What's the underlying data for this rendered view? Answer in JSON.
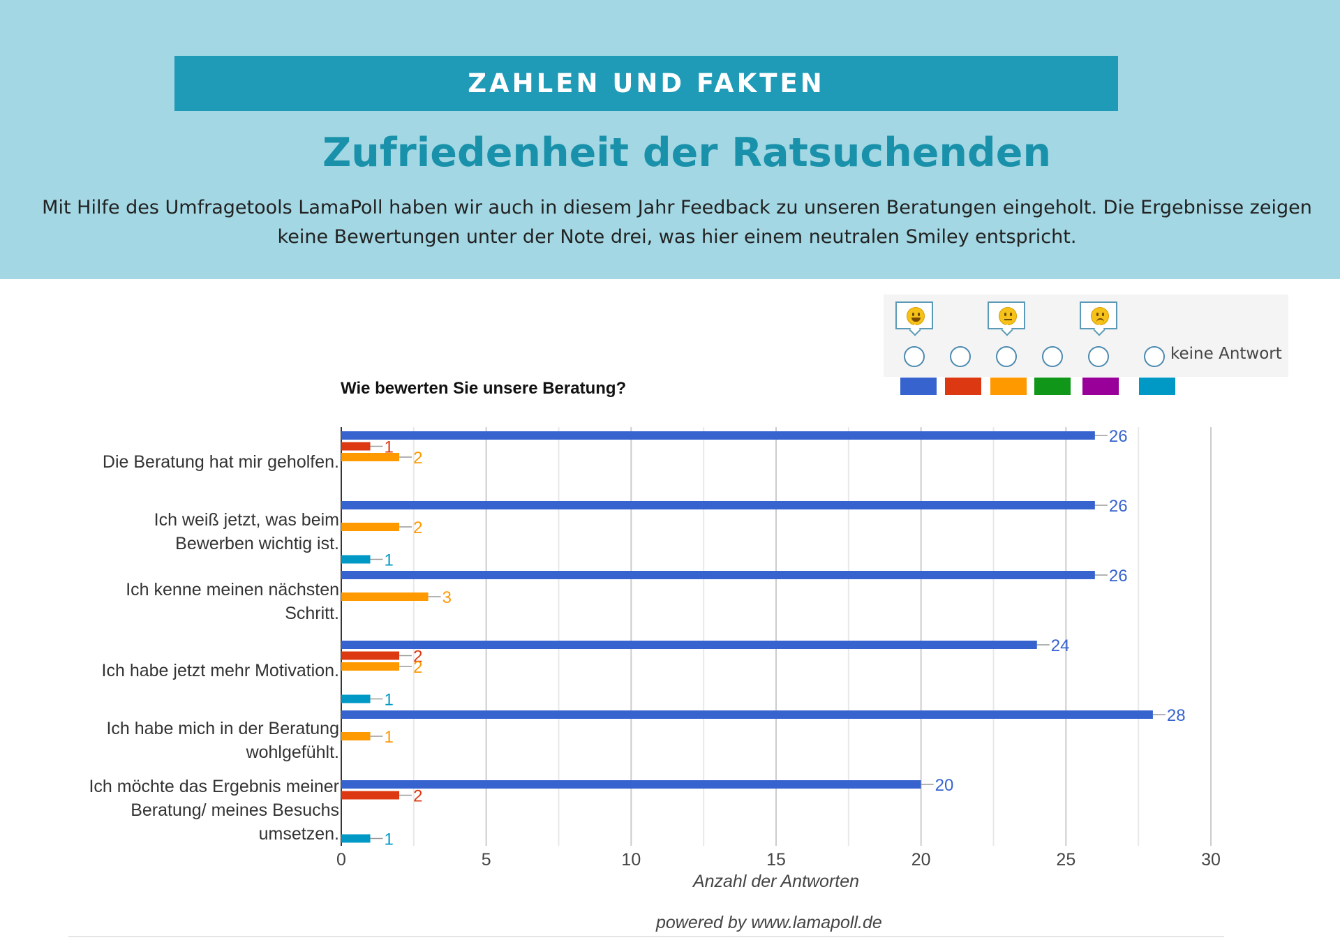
{
  "header": {
    "banner": "ZAHLEN UND FAKTEN",
    "title": "Zufriedenheit der Ratsuchenden",
    "intro": "Mit Hilfe des Umfragetools LamaPoll haben wir auch in diesem Jahr Feedback zu unseren Beratungen eingeholt. Die Ergebnisse zeigen keine Bewertungen unter der Note drei, was hier einem neutralen Smiley entspricht."
  },
  "legend": {
    "smileys": [
      "happy-smiley-icon",
      "neutral-smiley-icon",
      "sad-smiley-icon"
    ],
    "no_answer_label": "keine Antwort",
    "colors": [
      "#3763cf",
      "#dc3912",
      "#ff9900",
      "#109618",
      "#990099",
      "#0099c6"
    ]
  },
  "chart_data": {
    "type": "bar",
    "orientation": "horizontal",
    "title": "Wie bewerten Sie unsere Beratung?",
    "xlabel": "Anzahl der Antworten",
    "ylabel": "",
    "xlim": [
      0,
      30
    ],
    "xticks": [
      0,
      5,
      10,
      15,
      20,
      25,
      30
    ],
    "grid": true,
    "categories": [
      "Die Beratung hat mir geholfen.",
      "Ich weiß jetzt, was beim\nBewerben wichtig ist.",
      "Ich kenne meinen nächsten\nSchritt.",
      "Ich habe jetzt mehr Motivation.",
      "Ich habe mich in der Beratung\nwohlgefühlt.",
      "Ich möchte das Ergebnis meiner\nBeratung/ meines Besuchs\numsetzen."
    ],
    "series": [
      {
        "color": "#3763cf",
        "values": [
          26,
          26,
          26,
          24,
          28,
          20
        ]
      },
      {
        "color": "#dc3912",
        "values": [
          1,
          0,
          0,
          2,
          0,
          2
        ]
      },
      {
        "color": "#ff9900",
        "values": [
          2,
          2,
          3,
          2,
          1,
          0
        ]
      },
      {
        "color": "#109618",
        "values": [
          0,
          0,
          0,
          0,
          0,
          0
        ]
      },
      {
        "color": "#990099",
        "values": [
          0,
          0,
          0,
          0,
          0,
          0
        ]
      },
      {
        "color": "#0099c6",
        "values": [
          0,
          1,
          0,
          1,
          0,
          1
        ]
      }
    ]
  },
  "footer": {
    "powered_by": "powered by www.lamapoll.de"
  }
}
